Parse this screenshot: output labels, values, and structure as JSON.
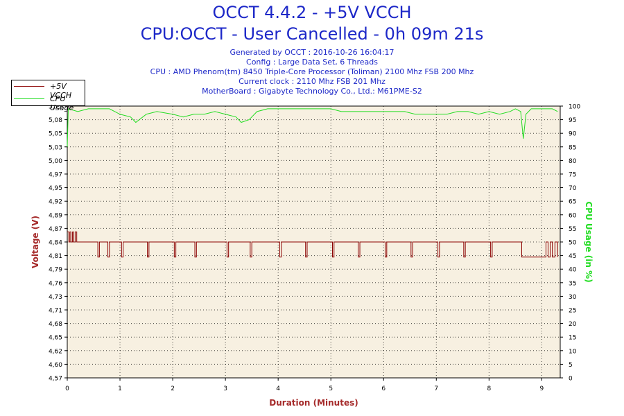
{
  "header": {
    "title_line1": "OCCT 4.4.2 - +5V VCCH",
    "title_line2": "CPU:OCCT - User Cancelled - 0h 09m 21s",
    "info_lines": [
      "Generated by OCCT : 2016-10-26 16:04:17",
      "Config : Large Data Set, 6 Threads",
      "CPU : AMD Phenom(tm) 8450 Triple-Core Processor (Toliman) 2100 Mhz FSB 200 Mhz",
      "Current clock : 2110 Mhz FSB 201 Mhz",
      "MotherBoard : Gigabyte Technology Co., Ltd.: M61PME-S2"
    ]
  },
  "colors": {
    "title": "#1d28c8",
    "plot_background": "#f7f0e1",
    "voltage_series": "#8b0000",
    "cpu_series": "#22dd22",
    "left_axis_label": "#a52a2a",
    "right_axis_label": "#22dd22",
    "x_axis_label": "#a52a2a"
  },
  "chart_data": {
    "type": "line",
    "title": "OCCT 4.4.2 - +5V VCCH",
    "subtitle": "CPU:OCCT - User Cancelled - 0h 09m 21s",
    "xlabel": "Duration (Minutes)",
    "ylabel_left": "Voltage (V)",
    "ylabel_right": "CPU Usage (in %)",
    "xlim": [
      0,
      9.35
    ],
    "ylim_left": [
      4.57,
      5.11
    ],
    "ylim_right": [
      0,
      100
    ],
    "x_ticks": [
      "0",
      "1",
      "2",
      "3",
      "4",
      "5",
      "6",
      "7",
      "8",
      "9"
    ],
    "y_left_ticks": [
      "4,57",
      "4,60",
      "4,62",
      "4,65",
      "4,68",
      "4,71",
      "4,73",
      "4,76",
      "4,79",
      "4,81",
      "4,84",
      "4,87",
      "4,89",
      "4,92",
      "4,95",
      "4,97",
      "5,00",
      "5,03",
      "5,05",
      "5,08",
      "5,11"
    ],
    "y_right_ticks": [
      "0",
      "5",
      "10",
      "15",
      "20",
      "25",
      "30",
      "35",
      "40",
      "45",
      "50",
      "55",
      "60",
      "65",
      "70",
      "75",
      "80",
      "85",
      "90",
      "95",
      "100"
    ],
    "grid": true,
    "legend_position": "top-left",
    "series": [
      {
        "name": "+5V VCCH",
        "axis": "left",
        "points": [
          [
            0,
            4.86
          ],
          [
            0.03,
            4.84
          ],
          [
            0.05,
            4.86
          ],
          [
            0.07,
            4.84
          ],
          [
            0.1,
            4.86
          ],
          [
            0.12,
            4.84
          ],
          [
            0.15,
            4.86
          ],
          [
            0.18,
            4.84
          ],
          [
            0.55,
            4.84
          ],
          [
            0.58,
            4.81
          ],
          [
            0.61,
            4.84
          ],
          [
            0.75,
            4.84
          ],
          [
            0.77,
            4.81
          ],
          [
            0.8,
            4.84
          ],
          [
            1.0,
            4.84
          ],
          [
            1.03,
            4.81
          ],
          [
            1.06,
            4.84
          ],
          [
            1.5,
            4.84
          ],
          [
            1.52,
            4.81
          ],
          [
            1.55,
            4.84
          ],
          [
            2.0,
            4.84
          ],
          [
            2.03,
            4.81
          ],
          [
            2.06,
            4.84
          ],
          [
            2.4,
            4.84
          ],
          [
            2.42,
            4.81
          ],
          [
            2.45,
            4.84
          ],
          [
            3.0,
            4.84
          ],
          [
            3.03,
            4.81
          ],
          [
            3.06,
            4.84
          ],
          [
            3.45,
            4.84
          ],
          [
            3.47,
            4.81
          ],
          [
            3.5,
            4.84
          ],
          [
            4.0,
            4.84
          ],
          [
            4.03,
            4.81
          ],
          [
            4.06,
            4.84
          ],
          [
            4.5,
            4.84
          ],
          [
            4.52,
            4.81
          ],
          [
            4.55,
            4.84
          ],
          [
            5.0,
            4.84
          ],
          [
            5.03,
            4.81
          ],
          [
            5.06,
            4.84
          ],
          [
            5.5,
            4.84
          ],
          [
            5.52,
            4.81
          ],
          [
            5.55,
            4.84
          ],
          [
            6.0,
            4.84
          ],
          [
            6.03,
            4.81
          ],
          [
            6.06,
            4.84
          ],
          [
            6.5,
            4.84
          ],
          [
            6.52,
            4.81
          ],
          [
            6.55,
            4.84
          ],
          [
            7.0,
            4.84
          ],
          [
            7.03,
            4.81
          ],
          [
            7.06,
            4.84
          ],
          [
            7.5,
            4.84
          ],
          [
            7.52,
            4.81
          ],
          [
            7.55,
            4.84
          ],
          [
            8.0,
            4.84
          ],
          [
            8.03,
            4.81
          ],
          [
            8.06,
            4.84
          ],
          [
            8.6,
            4.84
          ],
          [
            8.62,
            4.81
          ],
          [
            9.05,
            4.81
          ],
          [
            9.08,
            4.84
          ],
          [
            9.12,
            4.81
          ],
          [
            9.16,
            4.84
          ],
          [
            9.2,
            4.81
          ],
          [
            9.25,
            4.84
          ],
          [
            9.3,
            4.81
          ]
        ]
      },
      {
        "name": "CPU Usage",
        "axis": "right",
        "points": [
          [
            0,
            85
          ],
          [
            0.02,
            99
          ],
          [
            0.2,
            98
          ],
          [
            0.4,
            99
          ],
          [
            0.6,
            99
          ],
          [
            0.8,
            99
          ],
          [
            1.0,
            97
          ],
          [
            1.2,
            96
          ],
          [
            1.3,
            94
          ],
          [
            1.5,
            97
          ],
          [
            1.7,
            98
          ],
          [
            2.0,
            97
          ],
          [
            2.2,
            96
          ],
          [
            2.4,
            97
          ],
          [
            2.6,
            97
          ],
          [
            2.8,
            98
          ],
          [
            3.0,
            97
          ],
          [
            3.2,
            96
          ],
          [
            3.3,
            94
          ],
          [
            3.45,
            95
          ],
          [
            3.6,
            98
          ],
          [
            3.8,
            99
          ],
          [
            4.0,
            99
          ],
          [
            4.2,
            99
          ],
          [
            4.4,
            99
          ],
          [
            4.6,
            99
          ],
          [
            4.8,
            99
          ],
          [
            5.0,
            99
          ],
          [
            5.2,
            98
          ],
          [
            5.4,
            98
          ],
          [
            5.6,
            98
          ],
          [
            5.8,
            98
          ],
          [
            6.0,
            98
          ],
          [
            6.2,
            98
          ],
          [
            6.4,
            98
          ],
          [
            6.6,
            97
          ],
          [
            6.8,
            97
          ],
          [
            7.0,
            97
          ],
          [
            7.2,
            97
          ],
          [
            7.4,
            98
          ],
          [
            7.6,
            98
          ],
          [
            7.8,
            97
          ],
          [
            8.0,
            98
          ],
          [
            8.2,
            97
          ],
          [
            8.4,
            98
          ],
          [
            8.5,
            99
          ],
          [
            8.6,
            98
          ],
          [
            8.65,
            88
          ],
          [
            8.7,
            97
          ],
          [
            8.8,
            99
          ],
          [
            9.0,
            99
          ],
          [
            9.2,
            99
          ],
          [
            9.3,
            98
          ]
        ]
      }
    ]
  }
}
